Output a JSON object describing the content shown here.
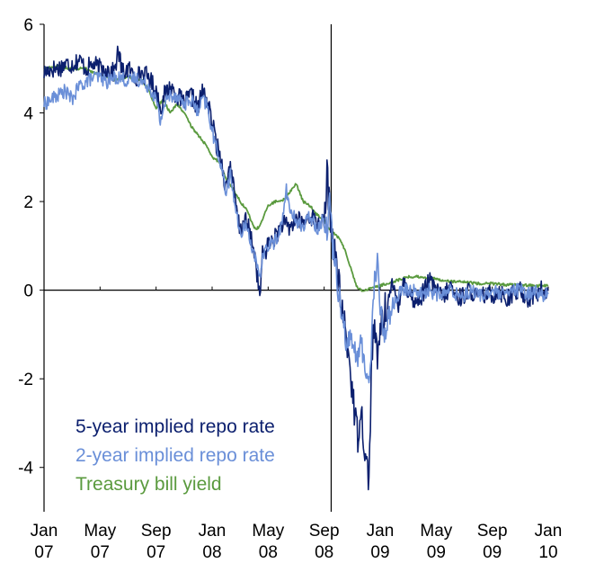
{
  "chart_data": {
    "type": "line",
    "title": "",
    "xlabel": "",
    "ylabel": "",
    "ylim": [
      -5,
      6
    ],
    "yticks": [
      -4,
      -2,
      0,
      2,
      4,
      6
    ],
    "ytick_labels": [
      "-4",
      "-2",
      "0",
      "2",
      "4",
      "6"
    ],
    "xlim": [
      0,
      36
    ],
    "xticks": [
      {
        "pos": 0,
        "line1": "Jan",
        "line2": "07"
      },
      {
        "pos": 4,
        "line1": "May",
        "line2": "07"
      },
      {
        "pos": 8,
        "line1": "Sep",
        "line2": "07"
      },
      {
        "pos": 12,
        "line1": "Jan",
        "line2": "08"
      },
      {
        "pos": 16,
        "line1": "May",
        "line2": "08"
      },
      {
        "pos": 20,
        "line1": "Sep",
        "line2": "08"
      },
      {
        "pos": 24,
        "line1": "Jan",
        "line2": "09"
      },
      {
        "pos": 28,
        "line1": "May",
        "line2": "09"
      },
      {
        "pos": 32,
        "line1": "Sep",
        "line2": "09"
      },
      {
        "pos": 36,
        "line1": "Jan",
        "line2": "10"
      }
    ],
    "vertical_marker": 20.5,
    "x_unit": "months since Jan 2007",
    "legend_position": "bottom-left",
    "series": [
      {
        "name": "5-year implied repo rate",
        "color": "#0b1f6e",
        "x": [
          0,
          0.5,
          1,
          1.5,
          2,
          2.5,
          3,
          3.5,
          4,
          4.5,
          5,
          5.3,
          5.6,
          6,
          6.5,
          7,
          7.5,
          8,
          8.3,
          8.6,
          9,
          9.5,
          10,
          10.5,
          11,
          11.3,
          11.6,
          12,
          12.3,
          12.6,
          13,
          13.3,
          13.6,
          14,
          14.3,
          14.6,
          15,
          15.2,
          15.4,
          15.6,
          16,
          16.5,
          17,
          17.5,
          18,
          18.5,
          19,
          19.5,
          19.8,
          20,
          20.2,
          20.4,
          20.6,
          20.8,
          21,
          21.2,
          21.5,
          21.8,
          22,
          22.2,
          22.4,
          22.6,
          22.8,
          23,
          23.2,
          23.4,
          23.6,
          23.8,
          24,
          24.3,
          24.6,
          25,
          25.3,
          25.6,
          26,
          26.5,
          27,
          27.5,
          28,
          28.5,
          29,
          29.5,
          30,
          30.5,
          31,
          31.5,
          32,
          32.5,
          33,
          33.5,
          34,
          34.5,
          35,
          35.5,
          36
        ],
        "y": [
          4.9,
          5.0,
          5.0,
          5.1,
          5.1,
          5.2,
          5.0,
          5.1,
          5.0,
          5.0,
          4.9,
          5.4,
          4.9,
          5.0,
          4.8,
          4.9,
          4.8,
          4.5,
          4.1,
          4.4,
          4.6,
          4.4,
          4.2,
          4.4,
          4.1,
          4.5,
          4.3,
          3.8,
          3.3,
          3.0,
          2.3,
          2.9,
          2.1,
          1.3,
          1.6,
          1.4,
          0.9,
          0.4,
          -0.2,
          0.8,
          1.0,
          1.2,
          1.5,
          1.4,
          1.6,
          1.5,
          1.7,
          1.5,
          1.6,
          1.4,
          2.6,
          1.8,
          1.2,
          0.7,
          0.2,
          -0.3,
          -0.9,
          -1.6,
          -2.2,
          -2.9,
          -3.3,
          -2.6,
          -3.2,
          -3.9,
          -4.3,
          -1.4,
          -0.8,
          -1.7,
          -0.8,
          -0.5,
          -0.2,
          0.0,
          -0.3,
          0.2,
          0.0,
          -0.3,
          -0.1,
          0.2,
          0.0,
          -0.2,
          0.1,
          -0.2,
          -0.1,
          0.0,
          -0.2,
          -0.1,
          -0.1,
          0.0,
          -0.2,
          -0.1,
          0.0,
          -0.2,
          -0.1,
          0.0,
          -0.1
        ]
      },
      {
        "name": "2-year implied repo rate",
        "color": "#6a8fd8",
        "x": [
          0,
          0.5,
          1,
          1.5,
          2,
          2.5,
          3,
          3.5,
          4,
          4.5,
          5,
          5.5,
          6,
          6.5,
          7,
          7.5,
          8,
          8.3,
          8.6,
          9,
          9.5,
          10,
          10.5,
          11,
          11.3,
          11.6,
          12,
          12.3,
          12.6,
          13,
          13.3,
          13.6,
          14,
          14.3,
          14.6,
          15,
          15.2,
          15.4,
          15.6,
          16,
          16.5,
          17,
          17.3,
          17.6,
          18,
          18.5,
          19,
          19.5,
          20,
          20.2,
          20.4,
          20.6,
          20.8,
          21,
          21.3,
          21.6,
          22,
          22.3,
          22.6,
          23,
          23.2,
          23.4,
          23.6,
          23.8,
          24,
          24.3,
          24.6,
          25,
          25.3,
          25.6,
          26,
          26.5,
          27,
          27.5,
          28,
          28.5,
          29,
          29.5,
          30,
          30.5,
          31,
          31.5,
          32,
          32.5,
          33,
          33.5,
          34,
          34.5,
          35,
          35.5,
          36
        ],
        "y": [
          4.2,
          4.3,
          4.4,
          4.5,
          4.3,
          4.6,
          4.7,
          4.8,
          4.8,
          4.7,
          4.8,
          4.8,
          4.7,
          4.8,
          4.7,
          4.6,
          4.3,
          3.8,
          4.2,
          4.4,
          4.4,
          4.2,
          4.3,
          4.0,
          4.3,
          4.2,
          3.6,
          3.2,
          2.9,
          2.2,
          2.6,
          2.0,
          1.2,
          1.5,
          1.3,
          0.8,
          0.5,
          0.2,
          0.8,
          1.0,
          1.1,
          1.5,
          2.3,
          1.7,
          1.6,
          1.4,
          1.7,
          1.4,
          1.6,
          1.4,
          2.1,
          1.0,
          0.7,
          0.0,
          -0.5,
          -1.2,
          -1.1,
          -1.6,
          -1.2,
          -1.8,
          -2.2,
          -1.0,
          0.3,
          0.6,
          -0.4,
          -1.0,
          -0.6,
          -0.3,
          -0.1,
          0.0,
          0.0,
          0.0,
          -0.1,
          0.0,
          -0.1,
          -0.1,
          0.0,
          -0.1,
          -0.1,
          0.0,
          -0.1,
          -0.1,
          0.0,
          -0.1,
          -0.1,
          0.0,
          0.0,
          -0.1,
          0.0,
          -0.1,
          -0.1
        ]
      },
      {
        "name": "Treasury bill yield",
        "color": "#5a9a3e",
        "x": [
          0,
          1,
          2,
          3,
          4,
          5,
          6,
          7,
          7.5,
          8,
          8.5,
          9,
          9.5,
          10,
          10.5,
          11,
          11.5,
          12,
          12.5,
          13,
          13.5,
          14,
          14.5,
          15,
          15.3,
          15.6,
          16,
          16.5,
          17,
          17.5,
          18,
          18.5,
          19,
          19.5,
          20,
          20.3,
          20.6,
          21,
          21.5,
          22,
          22.3,
          22.6,
          23,
          23.3,
          24,
          25,
          26,
          27,
          28,
          29,
          30,
          31,
          32,
          33,
          34,
          35,
          36
        ],
        "y": [
          5.0,
          5.05,
          5.0,
          5.0,
          4.85,
          4.75,
          4.8,
          4.75,
          4.5,
          4.1,
          4.3,
          4.0,
          4.2,
          4.0,
          3.7,
          3.5,
          3.3,
          3.0,
          2.9,
          2.5,
          2.3,
          2.0,
          1.8,
          1.4,
          1.4,
          1.6,
          1.9,
          2.0,
          2.0,
          2.2,
          2.4,
          2.0,
          1.9,
          1.7,
          1.6,
          1.4,
          1.3,
          1.2,
          0.9,
          0.4,
          0.1,
          0.0,
          0.0,
          0.05,
          0.1,
          0.2,
          0.3,
          0.3,
          0.25,
          0.2,
          0.18,
          0.15,
          0.15,
          0.12,
          0.12,
          0.1,
          0.1
        ]
      }
    ]
  }
}
